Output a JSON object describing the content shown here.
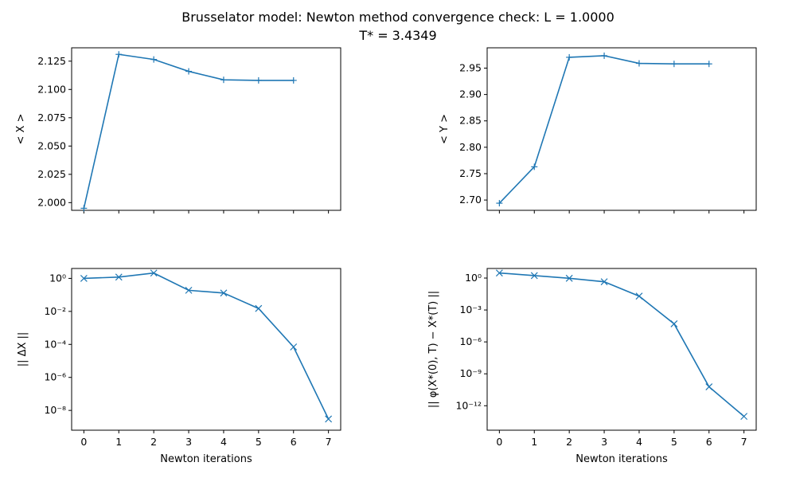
{
  "figure": {
    "title_line1": "Brusselator model: Newton method convergence check: L = 1.0000",
    "title_line2": "T* = 3.4349"
  },
  "chart_data": [
    {
      "type": "line",
      "panel": "top-left",
      "ylabel": "< X >",
      "xlabel": "",
      "xlim": [
        -0.35,
        7.35
      ],
      "ylim": [
        1.9932,
        2.1368
      ],
      "yscale": "linear",
      "xticks": [
        0,
        1,
        2,
        3,
        4,
        5,
        6,
        7
      ],
      "show_xtick_labels": false,
      "yticks": [
        2.0,
        2.025,
        2.05,
        2.075,
        2.1,
        2.125
      ],
      "ytick_labels": [
        "2.000",
        "2.025",
        "2.050",
        "2.075",
        "2.100",
        "2.125"
      ],
      "marker": "plus",
      "color": "#1f77b4",
      "x": [
        0,
        1,
        2,
        3,
        4,
        5,
        6
      ],
      "y": [
        1.995,
        2.131,
        2.1265,
        2.116,
        2.1085,
        2.108,
        2.108
      ]
    },
    {
      "type": "line",
      "panel": "top-right",
      "ylabel": "< Y >",
      "xlabel": "",
      "xlim": [
        -0.35,
        7.35
      ],
      "ylim": [
        2.6805,
        2.9885
      ],
      "yscale": "linear",
      "xticks": [
        0,
        1,
        2,
        3,
        4,
        5,
        6,
        7
      ],
      "show_xtick_labels": false,
      "yticks": [
        2.7,
        2.75,
        2.8,
        2.85,
        2.9,
        2.95
      ],
      "ytick_labels": [
        "2.70",
        "2.75",
        "2.80",
        "2.85",
        "2.90",
        "2.95"
      ],
      "marker": "plus",
      "color": "#1f77b4",
      "x": [
        0,
        1,
        2,
        3,
        4,
        5,
        6
      ],
      "y": [
        2.694,
        2.763,
        2.9705,
        2.9735,
        2.959,
        2.958,
        2.958
      ]
    },
    {
      "type": "line",
      "panel": "bottom-left",
      "ylabel": "|| ΔX ||",
      "xlabel": "Newton iterations",
      "xlim": [
        -0.35,
        7.35
      ],
      "ylim_log10": [
        -9.2,
        0.6
      ],
      "yscale": "log",
      "xticks": [
        0,
        1,
        2,
        3,
        4,
        5,
        6,
        7
      ],
      "show_xtick_labels": true,
      "ytick_exponents": [
        0,
        -2,
        -4,
        -6,
        -8
      ],
      "marker": "x",
      "color": "#1f77b4",
      "x": [
        0,
        1,
        2,
        3,
        4,
        5,
        6,
        7
      ],
      "y": [
        1.0,
        1.2,
        2.1,
        0.19,
        0.13,
        0.015,
        7e-05,
        3e-09
      ]
    },
    {
      "type": "line",
      "panel": "bottom-right",
      "ylabel": "|| φ(X*(0), T) − X*(T) ||",
      "xlabel": "Newton iterations",
      "xlim": [
        -0.35,
        7.35
      ],
      "ylim_log10": [
        -14.3,
        0.9
      ],
      "yscale": "log",
      "xticks": [
        0,
        1,
        2,
        3,
        4,
        5,
        6,
        7
      ],
      "show_xtick_labels": true,
      "ytick_exponents": [
        0,
        -3,
        -6,
        -9,
        -12
      ],
      "marker": "x",
      "color": "#1f77b4",
      "x": [
        0,
        1,
        2,
        3,
        4,
        5,
        6,
        7
      ],
      "y": [
        3.0,
        1.7,
        0.95,
        0.45,
        0.02,
        5e-05,
        6e-11,
        1e-13
      ]
    }
  ]
}
